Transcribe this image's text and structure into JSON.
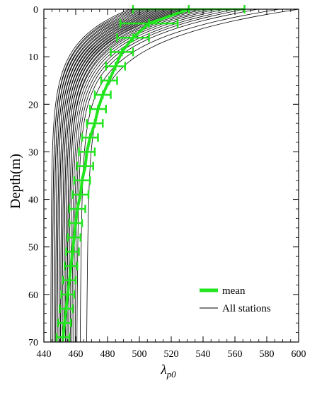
{
  "chart_data": {
    "type": "line",
    "xlabel_symbol": "λ",
    "xlabel_subscript": "p0",
    "ylabel": "Depth(m)",
    "xlim": [
      440,
      600
    ],
    "ylim": [
      0,
      70
    ],
    "y_inverted": true,
    "x_ticks": [
      440,
      460,
      480,
      500,
      520,
      540,
      560,
      580,
      600
    ],
    "y_ticks": [
      0,
      10,
      20,
      30,
      40,
      50,
      60,
      70
    ],
    "x_minor_step": 5,
    "y_minor_step": 2,
    "grid": false,
    "legend": {
      "position": "bottom-right",
      "entries": [
        {
          "label": "mean",
          "color": "#22e41f",
          "style": "thick"
        },
        {
          "label": "All stations",
          "color": "#000000",
          "style": "thin"
        }
      ]
    },
    "series": [
      {
        "type": "mean_with_error",
        "color": "#22e41f",
        "points": [
          {
            "x": 531,
            "y": 0,
            "err": 35
          },
          {
            "x": 506,
            "y": 3,
            "err": 18
          },
          {
            "x": 496,
            "y": 6,
            "err": 10
          },
          {
            "x": 489,
            "y": 9,
            "err": 7
          },
          {
            "x": 485,
            "y": 12,
            "err": 6
          },
          {
            "x": 481,
            "y": 15,
            "err": 5
          },
          {
            "x": 477,
            "y": 18,
            "err": 5
          },
          {
            "x": 474,
            "y": 21,
            "err": 5
          },
          {
            "x": 472,
            "y": 24,
            "err": 5
          },
          {
            "x": 469,
            "y": 27,
            "err": 5
          },
          {
            "x": 467,
            "y": 30,
            "err": 5
          },
          {
            "x": 466,
            "y": 33,
            "err": 5
          },
          {
            "x": 464,
            "y": 36,
            "err": 5
          },
          {
            "x": 463,
            "y": 39,
            "err": 5
          },
          {
            "x": 461,
            "y": 42,
            "err": 5
          },
          {
            "x": 460,
            "y": 45,
            "err": 4
          },
          {
            "x": 459,
            "y": 48,
            "err": 4
          },
          {
            "x": 458,
            "y": 51,
            "err": 4
          },
          {
            "x": 457,
            "y": 54,
            "err": 4
          },
          {
            "x": 456,
            "y": 57,
            "err": 4
          },
          {
            "x": 455,
            "y": 60,
            "err": 4
          },
          {
            "x": 454,
            "y": 63,
            "err": 4
          },
          {
            "x": 453,
            "y": 66,
            "err": 4
          },
          {
            "x": 452,
            "y": 69,
            "err": 4
          }
        ]
      }
    ],
    "stations": [
      {
        "surface": 595,
        "deep": 466
      },
      {
        "surface": 583,
        "deep": 462
      },
      {
        "surface": 570,
        "deep": 460
      },
      {
        "surface": 562,
        "deep": 459
      },
      {
        "surface": 556,
        "deep": 458
      },
      {
        "surface": 550,
        "deep": 457
      },
      {
        "surface": 545,
        "deep": 456
      },
      {
        "surface": 541,
        "deep": 455
      },
      {
        "surface": 537,
        "deep": 455
      },
      {
        "surface": 534,
        "deep": 454
      },
      {
        "surface": 531,
        "deep": 454
      },
      {
        "surface": 528,
        "deep": 453
      },
      {
        "surface": 526,
        "deep": 453
      },
      {
        "surface": 524,
        "deep": 452
      },
      {
        "surface": 522,
        "deep": 452
      },
      {
        "surface": 520,
        "deep": 451
      },
      {
        "surface": 518,
        "deep": 451
      },
      {
        "surface": 516,
        "deep": 450
      },
      {
        "surface": 514,
        "deep": 450
      },
      {
        "surface": 512,
        "deep": 449
      },
      {
        "surface": 510,
        "deep": 449
      },
      {
        "surface": 508,
        "deep": 448
      },
      {
        "surface": 506,
        "deep": 448
      },
      {
        "surface": 504,
        "deep": 447
      },
      {
        "surface": 502,
        "deep": 447
      },
      {
        "surface": 500,
        "deep": 446
      },
      {
        "surface": 498,
        "deep": 446
      },
      {
        "surface": 496,
        "deep": 445
      },
      {
        "surface": 494,
        "deep": 445
      },
      {
        "surface": 492,
        "deep": 444
      }
    ]
  }
}
